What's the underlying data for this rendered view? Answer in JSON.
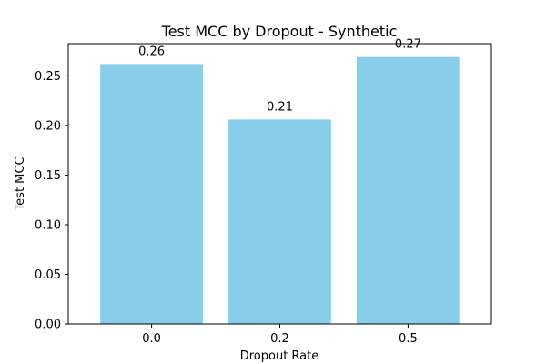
{
  "chart_data": {
    "type": "bar",
    "title": "Test MCC by Dropout - Synthetic",
    "xlabel": "Dropout Rate",
    "ylabel": "Test MCC",
    "categories": [
      "0.0",
      "0.2",
      "0.5"
    ],
    "values": [
      0.262,
      0.206,
      0.269
    ],
    "data_labels": [
      "0.26",
      "0.21",
      "0.27"
    ],
    "yticks": [
      0.0,
      0.05,
      0.1,
      0.15,
      0.2,
      0.25
    ],
    "ytick_labels": [
      "0.00",
      "0.05",
      "0.10",
      "0.15",
      "0.20",
      "0.25"
    ],
    "ylim": [
      0,
      0.2825
    ],
    "grid": false,
    "bar_color": "#87CEEB",
    "axis_color": "#000000"
  }
}
